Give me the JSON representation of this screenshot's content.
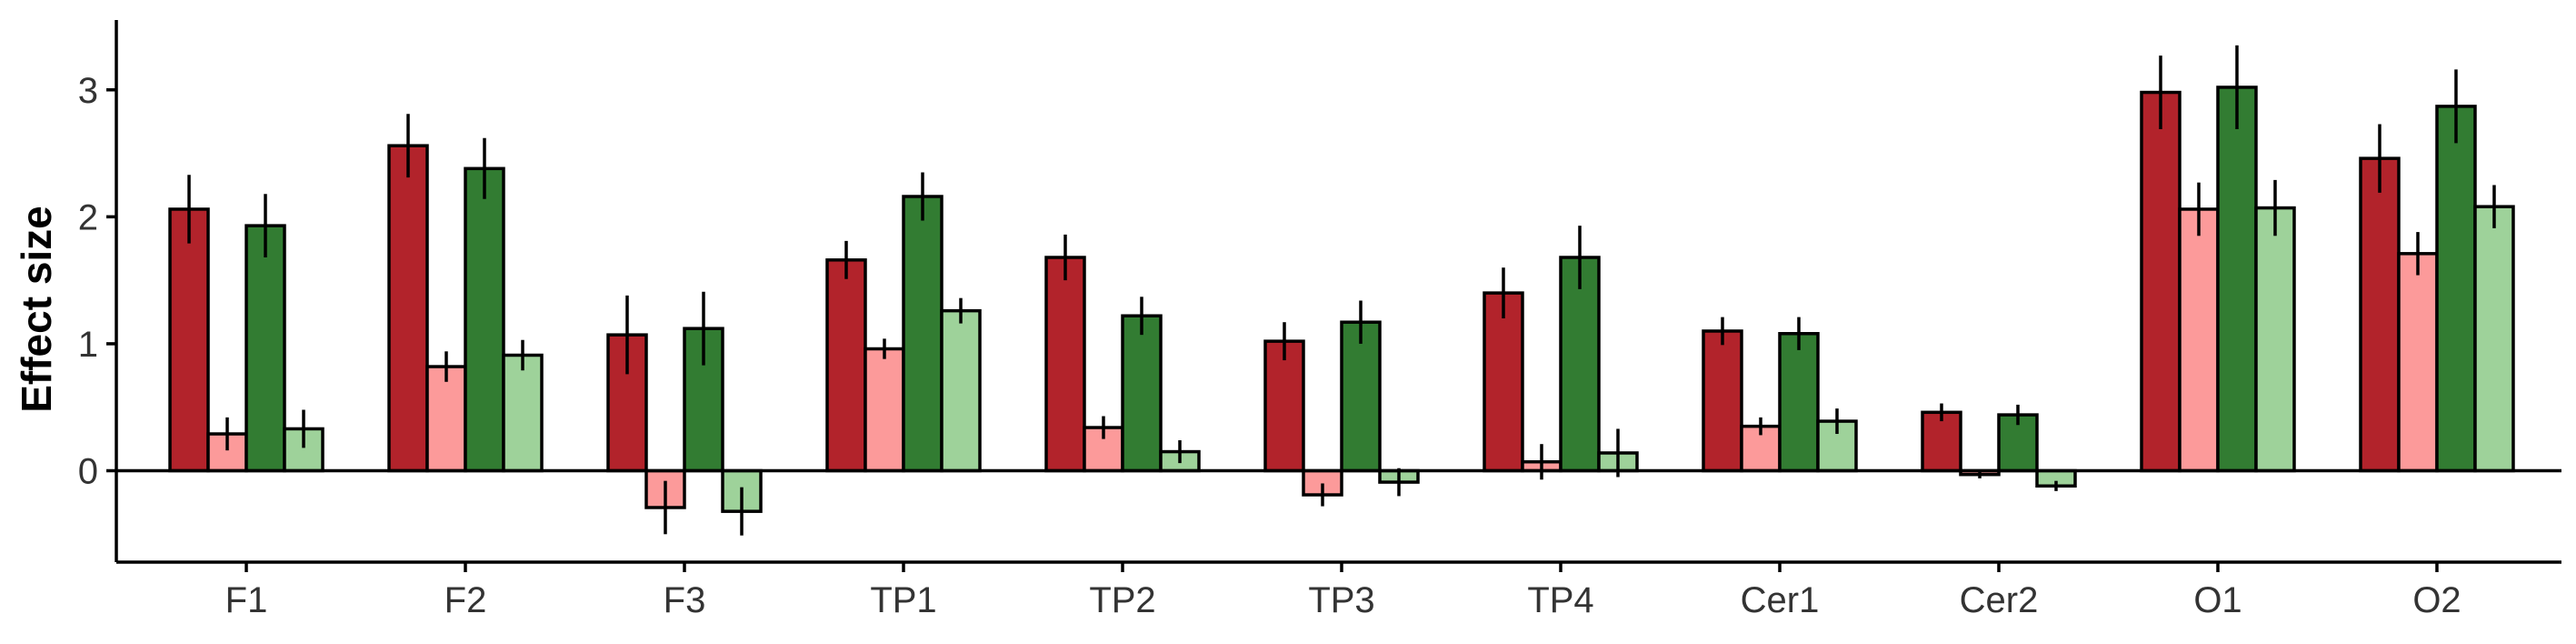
{
  "chart_data": {
    "type": "bar",
    "xlabel": "",
    "ylabel": "Effect size",
    "ylim": [
      -0.72,
      3.55
    ],
    "yticks": [
      0,
      1,
      2,
      3
    ],
    "grid": false,
    "zero_line": true,
    "categories": [
      "F1",
      "F2",
      "F3",
      "TP1",
      "TP2",
      "TP3",
      "TP4",
      "Cer1",
      "Cer2",
      "O1",
      "O2"
    ],
    "series": [
      {
        "color": "#b2232b",
        "values": [
          2.06,
          2.56,
          1.07,
          1.66,
          1.68,
          1.02,
          1.4,
          1.1,
          0.46,
          2.98,
          2.46
        ],
        "errors": [
          0.27,
          0.25,
          0.31,
          0.15,
          0.18,
          0.15,
          0.2,
          0.11,
          0.07,
          0.29,
          0.27
        ]
      },
      {
        "color": "#fc9a9a",
        "values": [
          0.29,
          0.82,
          -0.29,
          0.96,
          0.34,
          -0.19,
          0.07,
          0.35,
          -0.03,
          2.06,
          1.71
        ],
        "errors": [
          0.13,
          0.12,
          0.21,
          0.08,
          0.09,
          0.09,
          0.14,
          0.07,
          0.03,
          0.21,
          0.17
        ]
      },
      {
        "color": "#327c32",
        "values": [
          1.93,
          2.38,
          1.12,
          2.16,
          1.22,
          1.17,
          1.68,
          1.08,
          0.44,
          3.02,
          2.87
        ],
        "errors": [
          0.25,
          0.24,
          0.29,
          0.19,
          0.15,
          0.17,
          0.25,
          0.13,
          0.08,
          0.33,
          0.29
        ]
      },
      {
        "color": "#9ed29a",
        "values": [
          0.33,
          0.91,
          -0.32,
          1.26,
          0.15,
          -0.09,
          0.14,
          0.39,
          -0.12,
          2.07,
          2.08
        ],
        "errors": [
          0.15,
          0.12,
          0.19,
          0.1,
          0.09,
          0.11,
          0.19,
          0.1,
          0.04,
          0.22,
          0.17
        ]
      }
    ]
  }
}
